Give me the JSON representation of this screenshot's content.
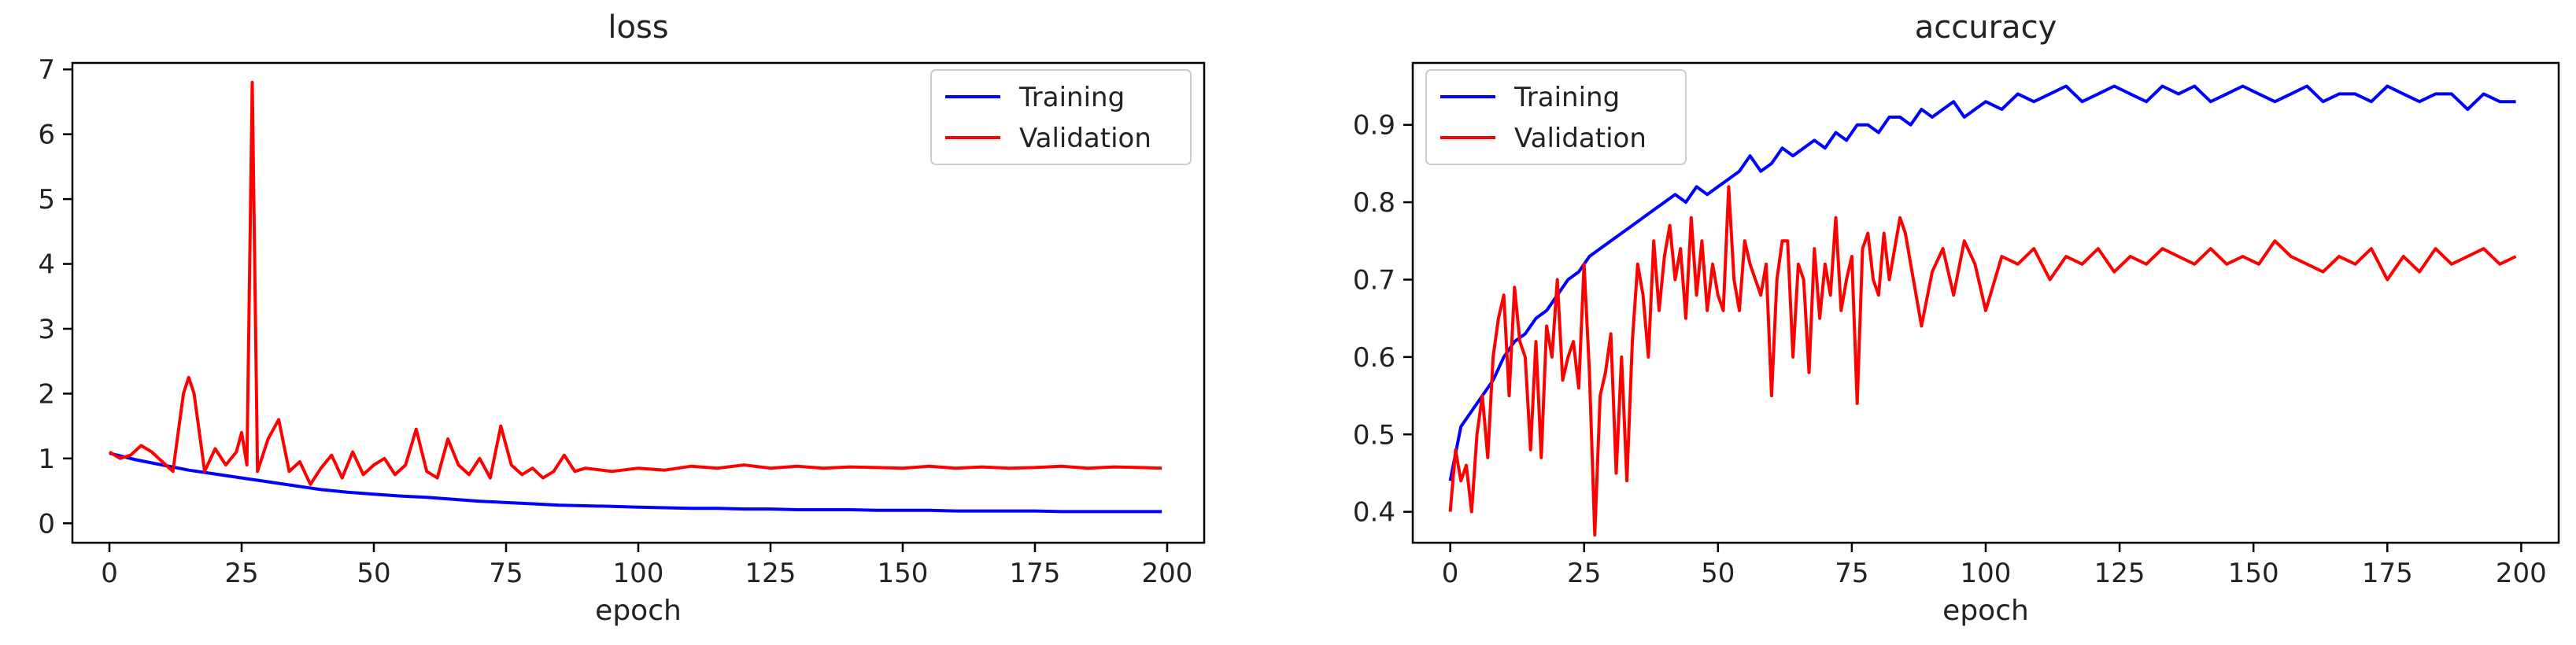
{
  "colors": {
    "training": "#0000ff",
    "validation": "#ff0000",
    "axis": "#000000"
  },
  "chart_data": [
    {
      "type": "line",
      "title": "loss",
      "xlabel": "epoch",
      "ylabel": "",
      "xlim": [
        -7,
        207
      ],
      "ylim": [
        -0.3,
        7.1
      ],
      "xticks": [
        0,
        25,
        50,
        75,
        100,
        125,
        150,
        175,
        200
      ],
      "yticks": [
        0,
        1,
        2,
        3,
        4,
        5,
        6,
        7
      ],
      "legend_position": "top-right",
      "series": [
        {
          "name": "Training",
          "color": "#0000ff",
          "x": [
            0,
            5,
            10,
            15,
            20,
            25,
            30,
            35,
            40,
            45,
            50,
            55,
            60,
            65,
            70,
            75,
            80,
            85,
            90,
            95,
            100,
            105,
            110,
            115,
            120,
            125,
            130,
            135,
            140,
            145,
            150,
            155,
            160,
            165,
            170,
            175,
            180,
            185,
            190,
            195,
            199
          ],
          "y": [
            1.08,
            0.98,
            0.9,
            0.82,
            0.76,
            0.7,
            0.64,
            0.58,
            0.52,
            0.48,
            0.45,
            0.42,
            0.4,
            0.37,
            0.34,
            0.32,
            0.3,
            0.28,
            0.27,
            0.26,
            0.25,
            0.24,
            0.23,
            0.23,
            0.22,
            0.22,
            0.21,
            0.21,
            0.21,
            0.2,
            0.2,
            0.2,
            0.19,
            0.19,
            0.19,
            0.19,
            0.18,
            0.18,
            0.18,
            0.18,
            0.18
          ]
        },
        {
          "name": "Validation",
          "color": "#ff0000",
          "x": [
            0,
            2,
            4,
            6,
            8,
            10,
            12,
            14,
            15,
            16,
            18,
            20,
            22,
            24,
            25,
            26,
            27,
            28,
            30,
            32,
            34,
            36,
            38,
            40,
            42,
            44,
            46,
            48,
            50,
            52,
            54,
            56,
            58,
            60,
            62,
            64,
            66,
            68,
            70,
            72,
            74,
            76,
            78,
            80,
            82,
            84,
            86,
            88,
            90,
            95,
            100,
            105,
            110,
            115,
            120,
            125,
            130,
            135,
            140,
            145,
            150,
            155,
            160,
            165,
            170,
            175,
            180,
            185,
            190,
            195,
            199
          ],
          "y": [
            1.1,
            1.0,
            1.05,
            1.2,
            1.1,
            0.95,
            0.8,
            2.0,
            2.25,
            2.0,
            0.8,
            1.15,
            0.9,
            1.1,
            1.4,
            0.9,
            6.8,
            0.8,
            1.3,
            1.6,
            0.8,
            0.95,
            0.6,
            0.85,
            1.05,
            0.7,
            1.1,
            0.75,
            0.9,
            1.0,
            0.75,
            0.9,
            1.45,
            0.8,
            0.7,
            1.3,
            0.9,
            0.75,
            1.0,
            0.7,
            1.5,
            0.9,
            0.75,
            0.85,
            0.7,
            0.8,
            1.05,
            0.8,
            0.85,
            0.8,
            0.85,
            0.82,
            0.88,
            0.85,
            0.9,
            0.85,
            0.88,
            0.85,
            0.87,
            0.86,
            0.85,
            0.88,
            0.85,
            0.87,
            0.85,
            0.86,
            0.88,
            0.85,
            0.87,
            0.86,
            0.85
          ]
        }
      ]
    },
    {
      "type": "line",
      "title": "accuracy",
      "xlabel": "epoch",
      "ylabel": "",
      "xlim": [
        -7,
        207
      ],
      "ylim": [
        0.36,
        0.98
      ],
      "xticks": [
        0,
        25,
        50,
        75,
        100,
        125,
        150,
        175,
        200
      ],
      "yticks": [
        0.4,
        0.5,
        0.6,
        0.7,
        0.8,
        0.9
      ],
      "legend_position": "top-left",
      "series": [
        {
          "name": "Training",
          "color": "#0000ff",
          "x": [
            0,
            2,
            4,
            6,
            8,
            10,
            12,
            14,
            16,
            18,
            20,
            22,
            24,
            26,
            28,
            30,
            32,
            34,
            36,
            38,
            40,
            42,
            44,
            46,
            48,
            50,
            52,
            54,
            56,
            58,
            60,
            62,
            64,
            66,
            68,
            70,
            72,
            74,
            76,
            78,
            80,
            82,
            84,
            86,
            88,
            90,
            92,
            94,
            96,
            98,
            100,
            103,
            106,
            109,
            112,
            115,
            118,
            121,
            124,
            127,
            130,
            133,
            136,
            139,
            142,
            145,
            148,
            151,
            154,
            157,
            160,
            163,
            166,
            169,
            172,
            175,
            178,
            181,
            184,
            187,
            190,
            193,
            196,
            199
          ],
          "y": [
            0.44,
            0.51,
            0.53,
            0.55,
            0.57,
            0.6,
            0.62,
            0.63,
            0.65,
            0.66,
            0.68,
            0.7,
            0.71,
            0.73,
            0.74,
            0.75,
            0.76,
            0.77,
            0.78,
            0.79,
            0.8,
            0.81,
            0.8,
            0.82,
            0.81,
            0.82,
            0.83,
            0.84,
            0.86,
            0.84,
            0.85,
            0.87,
            0.86,
            0.87,
            0.88,
            0.87,
            0.89,
            0.88,
            0.9,
            0.9,
            0.89,
            0.91,
            0.91,
            0.9,
            0.92,
            0.91,
            0.92,
            0.93,
            0.91,
            0.92,
            0.93,
            0.92,
            0.94,
            0.93,
            0.94,
            0.95,
            0.93,
            0.94,
            0.95,
            0.94,
            0.93,
            0.95,
            0.94,
            0.95,
            0.93,
            0.94,
            0.95,
            0.94,
            0.93,
            0.94,
            0.95,
            0.93,
            0.94,
            0.94,
            0.93,
            0.95,
            0.94,
            0.93,
            0.94,
            0.94,
            0.92,
            0.94,
            0.93,
            0.93
          ]
        },
        {
          "name": "Validation",
          "color": "#ff0000",
          "x": [
            0,
            1,
            2,
            3,
            4,
            5,
            6,
            7,
            8,
            9,
            10,
            11,
            12,
            13,
            14,
            15,
            16,
            17,
            18,
            19,
            20,
            21,
            22,
            23,
            24,
            25,
            26,
            27,
            28,
            29,
            30,
            31,
            32,
            33,
            34,
            35,
            36,
            37,
            38,
            39,
            40,
            41,
            42,
            43,
            44,
            45,
            46,
            47,
            48,
            49,
            50,
            51,
            52,
            53,
            54,
            55,
            56,
            57,
            58,
            59,
            60,
            61,
            62,
            63,
            64,
            65,
            66,
            67,
            68,
            69,
            70,
            71,
            72,
            73,
            74,
            75,
            76,
            77,
            78,
            79,
            80,
            81,
            82,
            83,
            84,
            85,
            86,
            88,
            90,
            92,
            94,
            96,
            98,
            100,
            103,
            106,
            109,
            112,
            115,
            118,
            121,
            124,
            127,
            130,
            133,
            136,
            139,
            142,
            145,
            148,
            151,
            154,
            157,
            160,
            163,
            166,
            169,
            172,
            175,
            178,
            181,
            184,
            187,
            190,
            193,
            196,
            199
          ],
          "y": [
            0.4,
            0.48,
            0.44,
            0.46,
            0.4,
            0.5,
            0.55,
            0.47,
            0.6,
            0.65,
            0.68,
            0.55,
            0.69,
            0.62,
            0.6,
            0.48,
            0.62,
            0.47,
            0.64,
            0.6,
            0.7,
            0.57,
            0.6,
            0.62,
            0.56,
            0.72,
            0.58,
            0.37,
            0.55,
            0.58,
            0.63,
            0.45,
            0.6,
            0.44,
            0.62,
            0.72,
            0.68,
            0.6,
            0.75,
            0.66,
            0.73,
            0.77,
            0.7,
            0.74,
            0.65,
            0.78,
            0.68,
            0.75,
            0.66,
            0.72,
            0.68,
            0.66,
            0.82,
            0.7,
            0.66,
            0.75,
            0.72,
            0.7,
            0.68,
            0.72,
            0.55,
            0.7,
            0.75,
            0.75,
            0.6,
            0.72,
            0.7,
            0.58,
            0.74,
            0.65,
            0.72,
            0.68,
            0.78,
            0.66,
            0.7,
            0.73,
            0.54,
            0.74,
            0.76,
            0.7,
            0.68,
            0.76,
            0.7,
            0.74,
            0.78,
            0.76,
            0.72,
            0.64,
            0.71,
            0.74,
            0.68,
            0.75,
            0.72,
            0.66,
            0.73,
            0.72,
            0.74,
            0.7,
            0.73,
            0.72,
            0.74,
            0.71,
            0.73,
            0.72,
            0.74,
            0.73,
            0.72,
            0.74,
            0.72,
            0.73,
            0.72,
            0.75,
            0.73,
            0.72,
            0.71,
            0.73,
            0.72,
            0.74,
            0.7,
            0.73,
            0.71,
            0.74,
            0.72,
            0.73,
            0.74,
            0.72,
            0.73
          ]
        }
      ]
    }
  ]
}
